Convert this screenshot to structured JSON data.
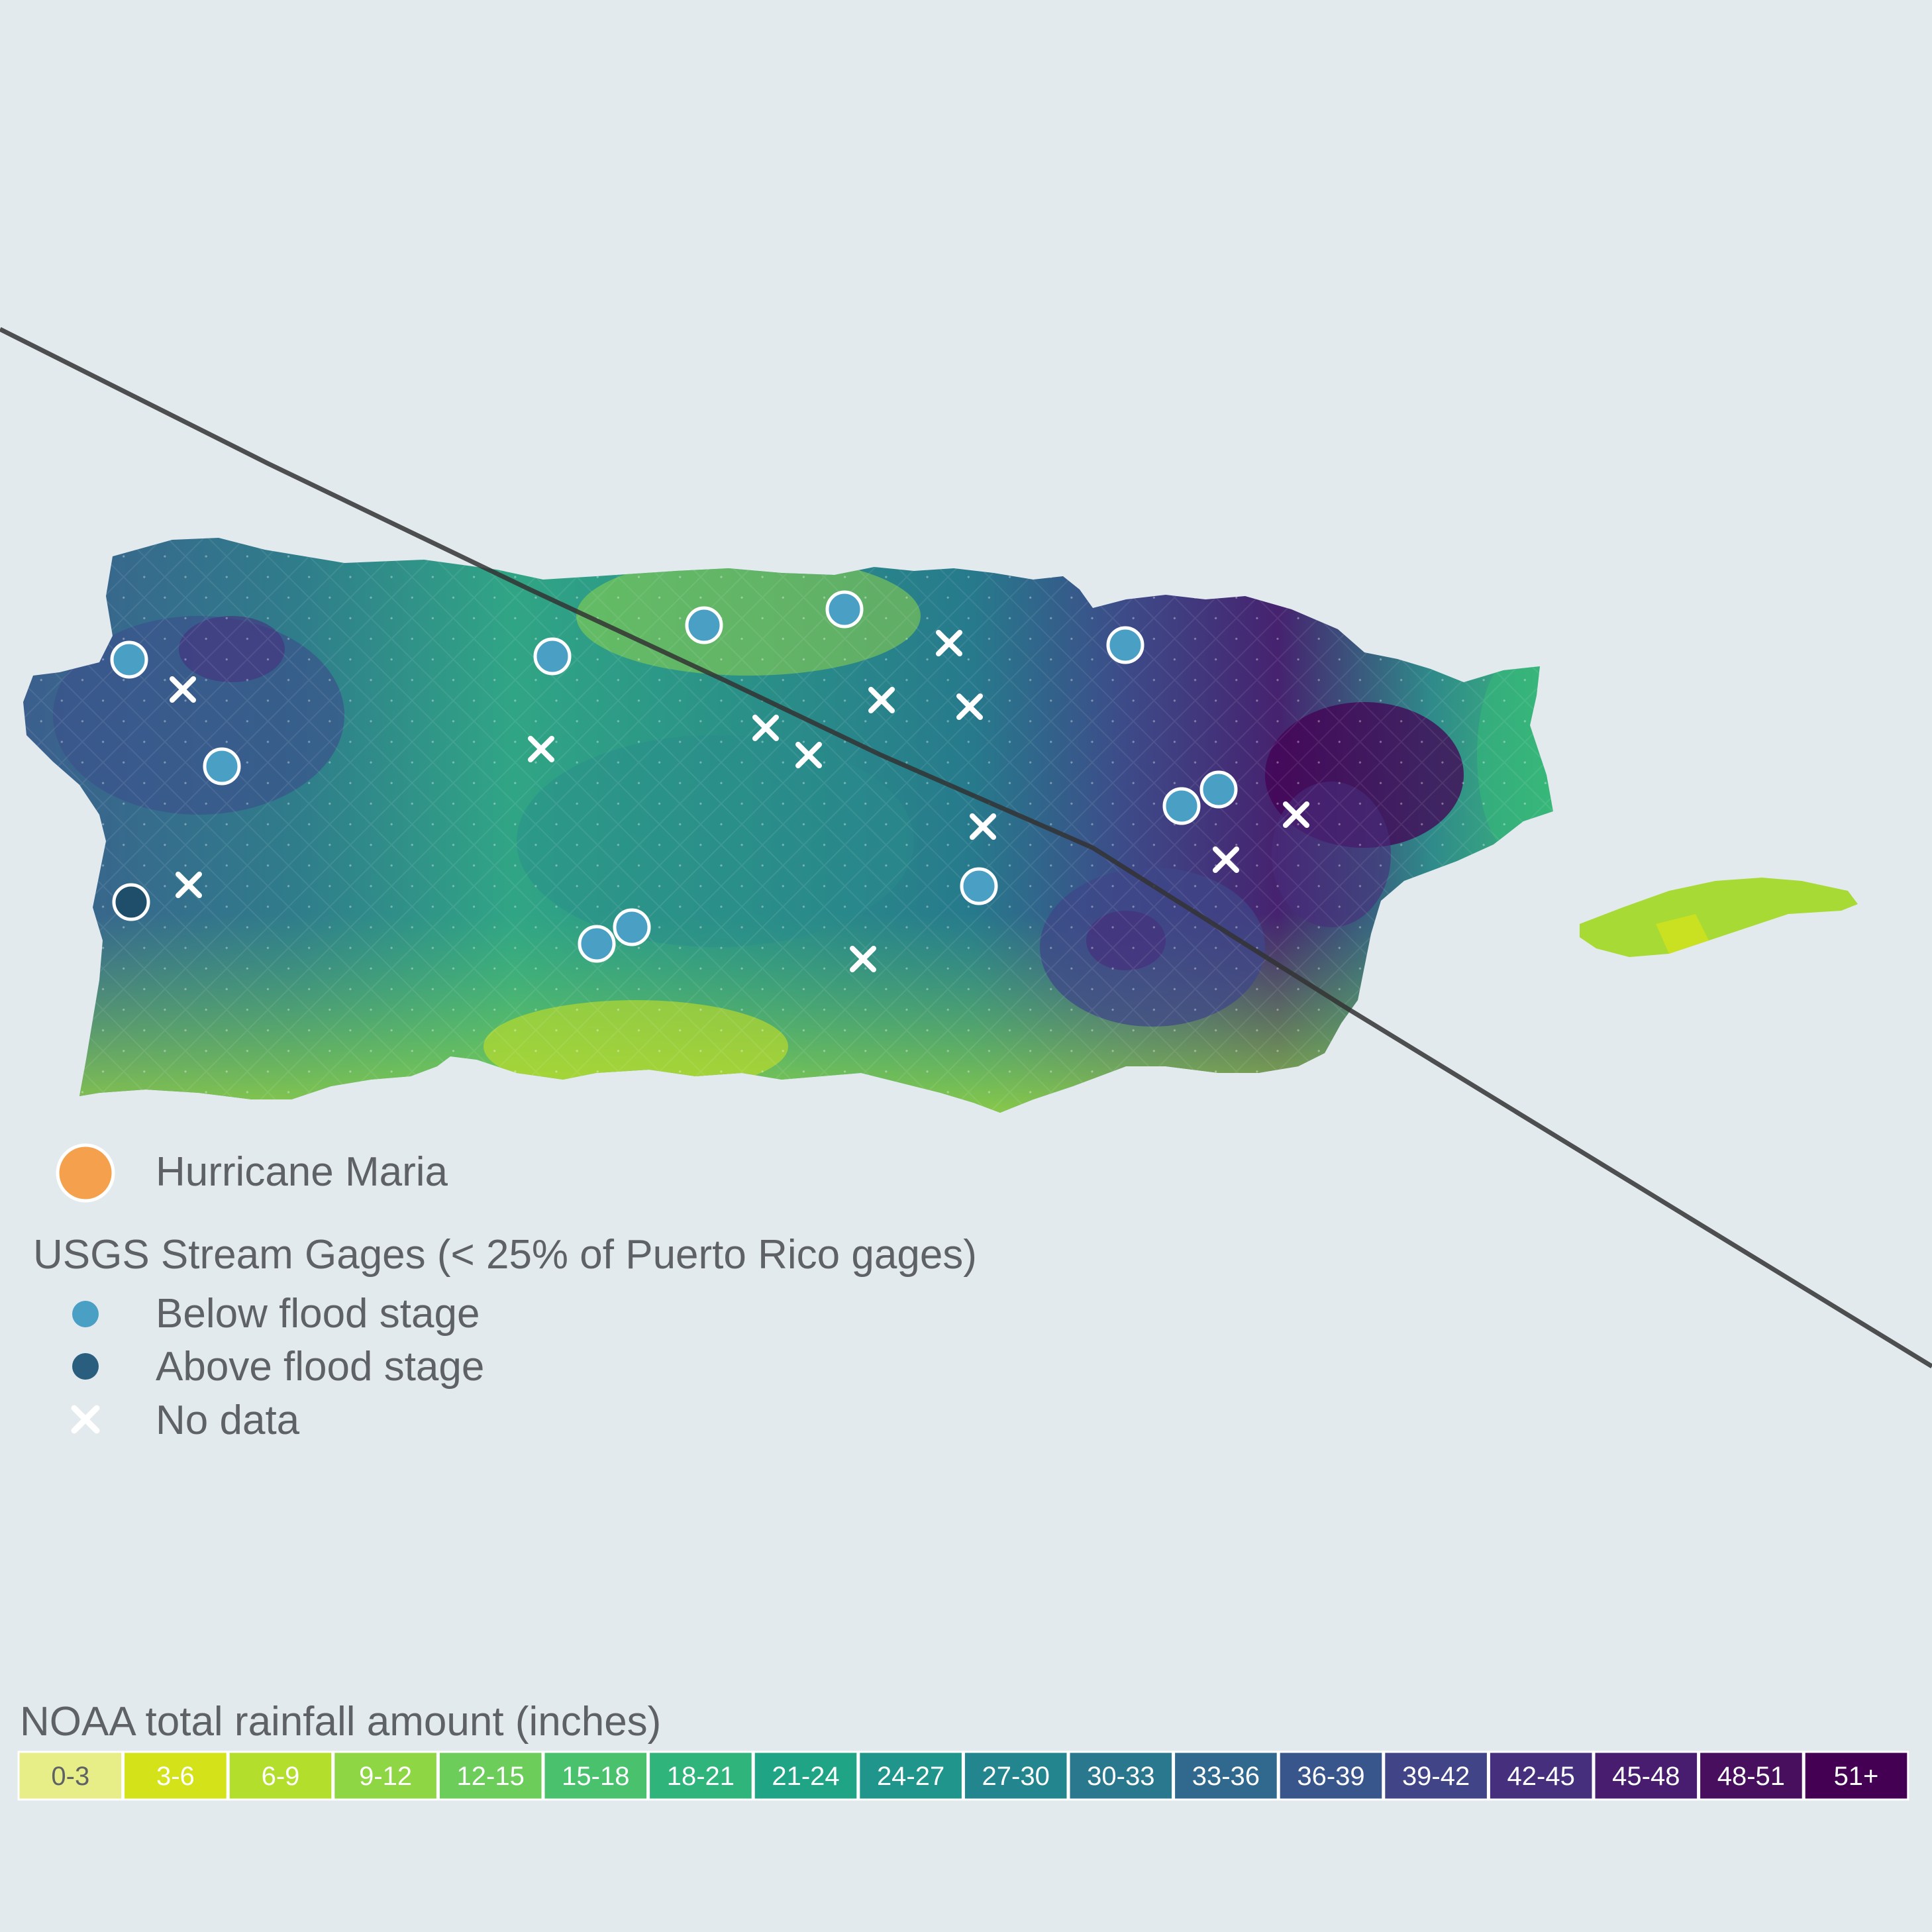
{
  "map": {
    "storm_name": "Hurricane Maria",
    "storm_color": "#f5a04d",
    "island_colors": {
      "low": "#b5de2b",
      "mid": "#3dbc74",
      "high": "#26828e",
      "very_high": "#3f4788",
      "extreme": "#440154"
    }
  },
  "legend": {
    "storm_label": "Hurricane Maria",
    "gages_title": "USGS Stream Gages (< 25% of Puerto Rico gages)",
    "items": [
      {
        "label": "Below flood stage",
        "symbol": "circle",
        "color": "#4a9fc4"
      },
      {
        "label": "Above flood stage",
        "symbol": "circle",
        "color": "#2a5e7e"
      },
      {
        "label": "No data",
        "symbol": "x",
        "color": "#ffffff"
      }
    ]
  },
  "rainfall_scale": {
    "title": "NOAA total rainfall amount (inches)",
    "bins": [
      {
        "label": "0-3",
        "color": "#e7ee87",
        "text_color": "#5e6266"
      },
      {
        "label": "3-6",
        "color": "#d4e21a",
        "text_color": "#ffffff"
      },
      {
        "label": "6-9",
        "color": "#b4de2c",
        "text_color": "#ffffff"
      },
      {
        "label": "9-12",
        "color": "#8ed643",
        "text_color": "#ffffff"
      },
      {
        "label": "12-15",
        "color": "#6ccd5a",
        "text_color": "#ffffff"
      },
      {
        "label": "15-18",
        "color": "#4ac16d",
        "text_color": "#ffffff"
      },
      {
        "label": "18-21",
        "color": "#2fb47c",
        "text_color": "#ffffff"
      },
      {
        "label": "21-24",
        "color": "#20a486",
        "text_color": "#ffffff"
      },
      {
        "label": "24-27",
        "color": "#1f958b",
        "text_color": "#ffffff"
      },
      {
        "label": "27-30",
        "color": "#23858e",
        "text_color": "#ffffff"
      },
      {
        "label": "30-33",
        "color": "#2a788e",
        "text_color": "#ffffff"
      },
      {
        "label": "33-36",
        "color": "#31688e",
        "text_color": "#ffffff"
      },
      {
        "label": "36-39",
        "color": "#39568c",
        "text_color": "#ffffff"
      },
      {
        "label": "39-42",
        "color": "#414487",
        "text_color": "#ffffff"
      },
      {
        "label": "42-45",
        "color": "#46307e",
        "text_color": "#ffffff"
      },
      {
        "label": "45-48",
        "color": "#481d6f",
        "text_color": "#ffffff"
      },
      {
        "label": "48-51",
        "color": "#470f5e",
        "text_color": "#ffffff"
      },
      {
        "label": "51+",
        "color": "#440154",
        "text_color": "#ffffff"
      }
    ]
  }
}
